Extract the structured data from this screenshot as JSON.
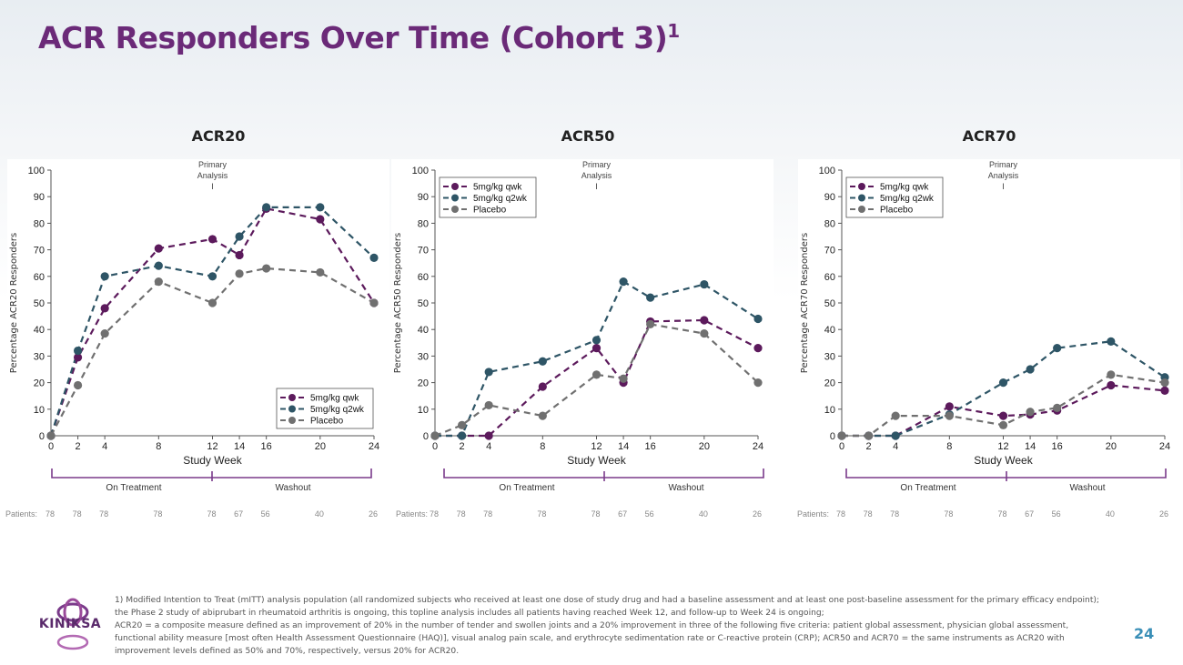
{
  "slide": {
    "title": "ACR Responders Over Time (Cohort 3)",
    "title_sup": "1",
    "page_number": "24",
    "logo_text": "KINIKSA",
    "footnote": [
      "1) Modified Intention to Treat (mITT) analysis population (all randomized subjects who received at least one dose of study drug and had a baseline assessment and at least one post-baseline assessment for the primary efficacy endpoint); the Phase 2 study of abiprubart in rheumatoid arthritis is ongoing, this topline analysis includes all patients having reached Week 12, and follow-up to Week 24 is ongoing;",
      "ACR20 = a composite measure defined as an improvement of 20% in the number of tender and swollen joints and a 20% improvement in three of the following five criteria: patient global assessment, physician global assessment, functional ability measure [most often Health Assessment Questionnaire (HAQ)], visual analog pain scale, and erythrocyte sedimentation rate or C-reactive protein (CRP); ACR50 and ACR70 = the same instruments as ACR20 with improvement levels defined as 50% and 70%, respectively, versus 20% for ACR20."
    ]
  },
  "colors": {
    "title": "#6b2a78",
    "qwk": "#5c1a5c",
    "q2wk": "#2e5566",
    "placebo": "#707070",
    "bracket": "#7a3a8a",
    "page_number": "#3a8fb7"
  },
  "common": {
    "xlabel": "Study Week",
    "primary_analysis": [
      "Primary",
      "Analysis",
      "I"
    ],
    "on_treatment": "On Treatment",
    "washout": "Washout",
    "patients_label": "Patients:",
    "patients": [
      "78",
      "78",
      "78",
      "78",
      "78",
      "67",
      "56",
      "40",
      "26"
    ]
  },
  "chart_data": [
    {
      "type": "line",
      "title": "ACR20",
      "ylabel": "Percentage ACR20 Responders",
      "xlabel": "Study Week",
      "x": [
        0,
        2,
        4,
        8,
        12,
        14,
        16,
        20,
        24
      ],
      "xticks": [
        0,
        2,
        4,
        8,
        12,
        14,
        16,
        20,
        24
      ],
      "yticks": [
        0,
        10,
        20,
        30,
        40,
        50,
        60,
        70,
        80,
        90,
        100
      ],
      "ylim": [
        0,
        100
      ],
      "legend_position": "bottom-right",
      "primary_analysis_week": 12,
      "series": [
        {
          "name": "5mg/kg qwk",
          "values": [
            0,
            29.5,
            48,
            70.5,
            74,
            68,
            85.5,
            81.5,
            50
          ]
        },
        {
          "name": "5mg/kg q2wk",
          "values": [
            0,
            32,
            60,
            64,
            60,
            75,
            86,
            86,
            67
          ]
        },
        {
          "name": "Placebo",
          "values": [
            0,
            19,
            38.5,
            58,
            50,
            61,
            63,
            61.5,
            50
          ]
        }
      ]
    },
    {
      "type": "line",
      "title": "ACR50",
      "ylabel": "Percentage ACR50 Responders",
      "xlabel": "Study Week",
      "x": [
        0,
        2,
        4,
        8,
        12,
        14,
        16,
        20,
        24
      ],
      "xticks": [
        0,
        2,
        4,
        8,
        12,
        14,
        16,
        20,
        24
      ],
      "yticks": [
        0,
        10,
        20,
        30,
        40,
        50,
        60,
        70,
        80,
        90,
        100
      ],
      "ylim": [
        0,
        100
      ],
      "legend_position": "top-left",
      "primary_analysis_week": 12,
      "series": [
        {
          "name": "5mg/kg qwk",
          "values": [
            0,
            0,
            0,
            18.5,
            33,
            20,
            43,
            43.5,
            33
          ]
        },
        {
          "name": "5mg/kg q2wk",
          "values": [
            0,
            0,
            24,
            28,
            36,
            58,
            52,
            57,
            44
          ]
        },
        {
          "name": "Placebo",
          "values": [
            0,
            4,
            11.5,
            7.5,
            23,
            21.5,
            42,
            38.5,
            20
          ]
        }
      ]
    },
    {
      "type": "line",
      "title": "ACR70",
      "ylabel": "Percentage ACR70 Responders",
      "xlabel": "Study Week",
      "x": [
        0,
        2,
        4,
        8,
        12,
        14,
        16,
        20,
        24
      ],
      "xticks": [
        0,
        2,
        4,
        8,
        12,
        14,
        16,
        20,
        24
      ],
      "yticks": [
        0,
        10,
        20,
        30,
        40,
        50,
        60,
        70,
        80,
        90,
        100
      ],
      "ylim": [
        0,
        100
      ],
      "legend_position": "top-left",
      "primary_analysis_week": 12,
      "series": [
        {
          "name": "5mg/kg qwk",
          "values": [
            0,
            0,
            0,
            11,
            7.5,
            8,
            9.5,
            19,
            17
          ]
        },
        {
          "name": "5mg/kg q2wk",
          "values": [
            0,
            0,
            0,
            8,
            20,
            25,
            33,
            35.5,
            22
          ]
        },
        {
          "name": "Placebo",
          "values": [
            0,
            0,
            7.5,
            7.5,
            4,
            9,
            10.5,
            23,
            20
          ]
        }
      ]
    }
  ]
}
